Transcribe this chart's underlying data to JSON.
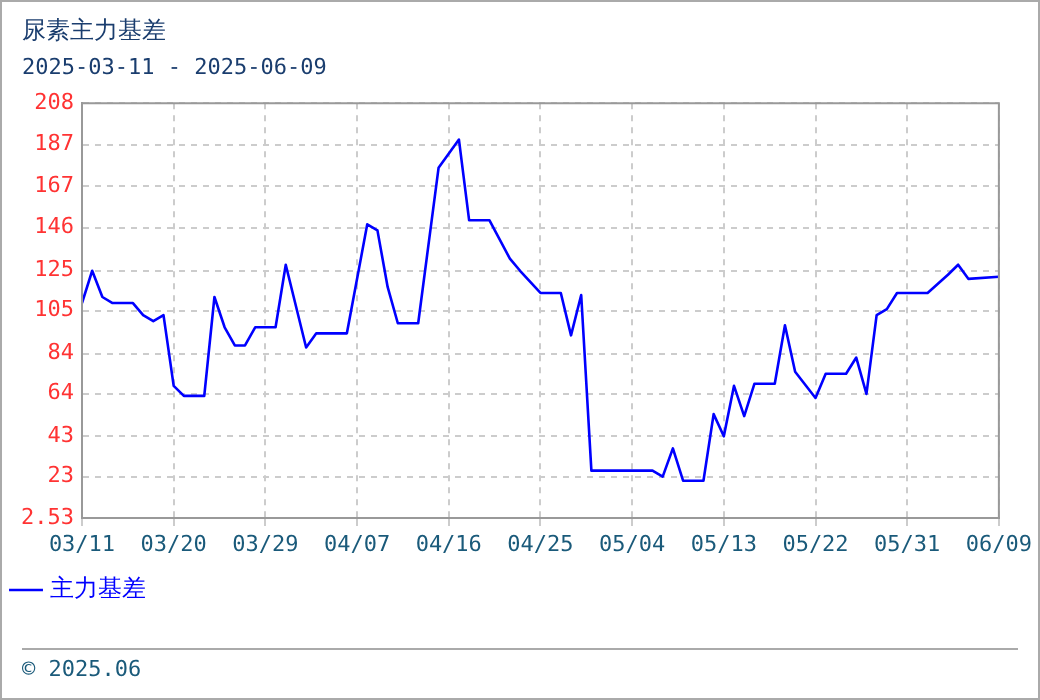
{
  "chart_data": {
    "type": "line",
    "title": "尿素主力基差",
    "subtitle": "2025-03-11 - 2025-06-09",
    "x": [
      "2025-03-11",
      "2025-03-12",
      "2025-03-13",
      "2025-03-14",
      "2025-03-16",
      "2025-03-17",
      "2025-03-18",
      "2025-03-19",
      "2025-03-20",
      "2025-03-21",
      "2025-03-23",
      "2025-03-24",
      "2025-03-25",
      "2025-03-26",
      "2025-03-27",
      "2025-03-28",
      "2025-03-30",
      "2025-03-31",
      "2025-04-02",
      "2025-04-03",
      "2025-04-06",
      "2025-04-08",
      "2025-04-09",
      "2025-04-10",
      "2025-04-11",
      "2025-04-13",
      "2025-04-15",
      "2025-04-17",
      "2025-04-18",
      "2025-04-20",
      "2025-04-22",
      "2025-04-23",
      "2025-04-25",
      "2025-04-27",
      "2025-04-28",
      "2025-04-29",
      "2025-04-30",
      "2025-05-06",
      "2025-05-07",
      "2025-05-08",
      "2025-05-09",
      "2025-05-11",
      "2025-05-12",
      "2025-05-13",
      "2025-05-14",
      "2025-05-15",
      "2025-05-16",
      "2025-05-18",
      "2025-05-19",
      "2025-05-20",
      "2025-05-22",
      "2025-05-23",
      "2025-05-25",
      "2025-05-26",
      "2025-05-27",
      "2025-05-28",
      "2025-05-29",
      "2025-05-30",
      "2025-06-02",
      "2025-06-04",
      "2025-06-05",
      "2025-06-06",
      "2025-06-09"
    ],
    "series": [
      {
        "name": "主力基差",
        "color": "#0000ff",
        "values": [
          109,
          125,
          112,
          109,
          109,
          103,
          100,
          103,
          68,
          63,
          63,
          112,
          97,
          88,
          88,
          97,
          97,
          128,
          87,
          94,
          94,
          148,
          145,
          117,
          99,
          99,
          176,
          190,
          150,
          150,
          131,
          125,
          114,
          114,
          93,
          113,
          26,
          26,
          23,
          37,
          21,
          21,
          54,
          43,
          68,
          53,
          69,
          69,
          98,
          75,
          62,
          74,
          74,
          82,
          64,
          103,
          106,
          114,
          114,
          123,
          128,
          121,
          122
        ]
      }
    ],
    "xlim": [
      "2025-03-11",
      "2025-06-09"
    ],
    "xticks": [
      {
        "value": "2025-03-11",
        "label": "03/11"
      },
      {
        "value": "2025-03-20",
        "label": "03/20"
      },
      {
        "value": "2025-03-29",
        "label": "03/29"
      },
      {
        "value": "2025-04-07",
        "label": "04/07"
      },
      {
        "value": "2025-04-16",
        "label": "04/16"
      },
      {
        "value": "2025-04-25",
        "label": "04/25"
      },
      {
        "value": "2025-05-04",
        "label": "05/04"
      },
      {
        "value": "2025-05-13",
        "label": "05/13"
      },
      {
        "value": "2025-05-22",
        "label": "05/22"
      },
      {
        "value": "2025-05-31",
        "label": "05/31"
      },
      {
        "value": "2025-06-09",
        "label": "06/09"
      }
    ],
    "ylim": [
      2.53,
      208
    ],
    "yticks": [
      2.53,
      {
        "value": 23.08,
        "label": "23"
      },
      43,
      {
        "value": 64.17,
        "label": "64"
      },
      84,
      {
        "value": 105.27,
        "label": "105"
      },
      125,
      {
        "value": 146.36,
        "label": "146"
      },
      {
        "value": 166.91,
        "label": "167"
      },
      {
        "value": 187.45,
        "label": "187"
      },
      208
    ],
    "grid": true,
    "legend": "bottom",
    "marker": "none",
    "line_style": "solid",
    "annotations": [
      "© 2025.06"
    ]
  }
}
